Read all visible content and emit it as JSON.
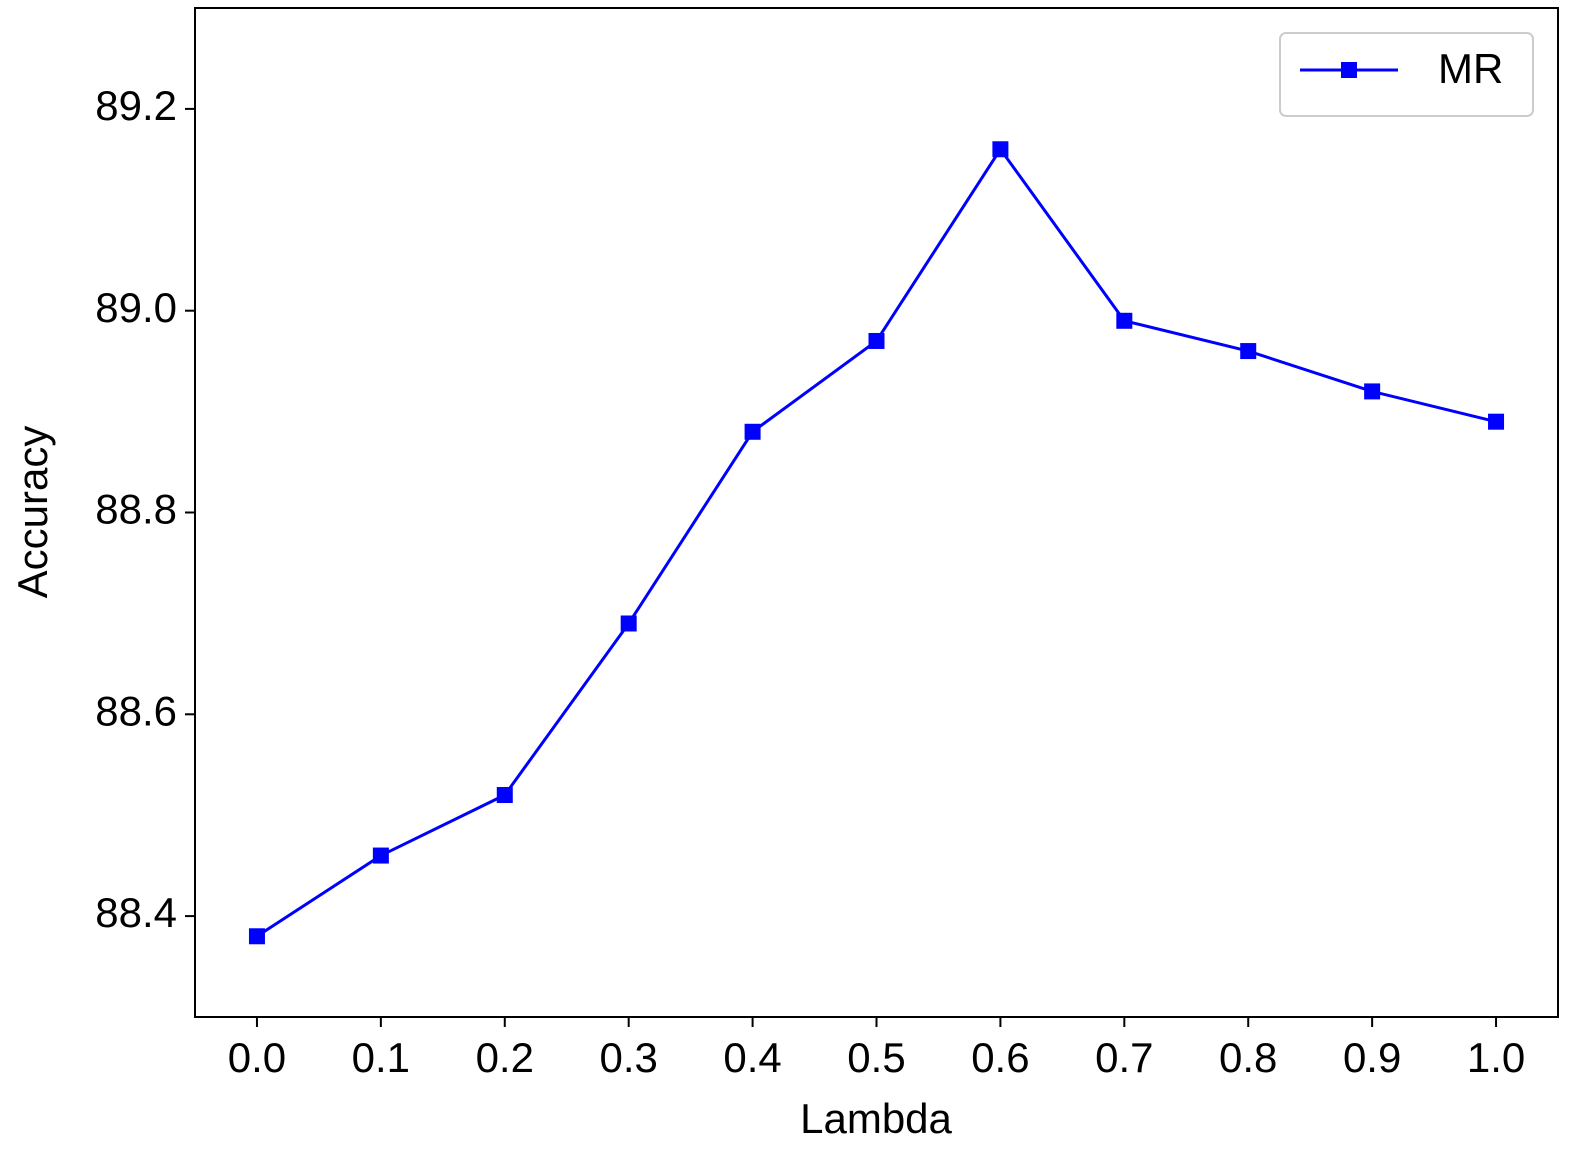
{
  "chart_data": {
    "type": "line",
    "xlabel": "Lambda",
    "ylabel": "Accuracy",
    "x": [
      0,
      0.1,
      0.2,
      0.3,
      0.4,
      0.5,
      0.6,
      0.7,
      0.8,
      0.9,
      1
    ],
    "series": [
      {
        "name": "MR",
        "color": "#0000ff",
        "values": [
          88.38,
          88.46,
          88.52,
          88.69,
          88.88,
          88.97,
          89.16,
          88.99,
          88.96,
          88.92,
          88.89
        ]
      }
    ],
    "xlim": [
      -0.05,
      1.05
    ],
    "xticks": [
      {
        "value": 0,
        "label": "0.0"
      },
      0.1,
      0.2,
      0.3,
      0.4,
      0.5,
      0.6,
      0.7,
      0.8,
      0.9,
      {
        "value": 1,
        "label": "1.0"
      }
    ],
    "ylim": [
      88.3,
      89.3
    ],
    "yticks": [
      88.4,
      88.6,
      88.8,
      {
        "value": 89,
        "label": "89.0"
      },
      89.2
    ],
    "grid": false,
    "legend": "upper right",
    "marker": "square"
  }
}
